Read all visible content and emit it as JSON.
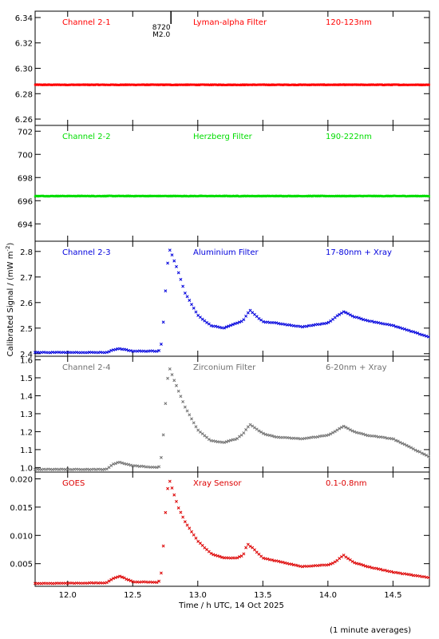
{
  "figure": {
    "ylabel": "Calibrated Signal  / (mW m",
    "ylabel_sup": "-2",
    "ylabel_end": ")",
    "xlabel": "Time / h UTC, 14 Oct 2025",
    "note": "(1 minute averages)",
    "flare_marker": {
      "x": 12.8,
      "label_top": "8720",
      "label_bottom": "M2.0"
    }
  },
  "chart_data": [
    {
      "type": "scatter",
      "channel": "Channel 2-1",
      "filter": "Lyman-alpha Filter",
      "band": "120-123nm",
      "color": "#ff0000",
      "xlim": [
        11.75,
        14.78
      ],
      "ylim": [
        6.255,
        6.345
      ],
      "yticks": [
        6.26,
        6.28,
        6.3,
        6.32,
        6.34
      ],
      "yticklabels": [
        "6.26",
        "6.28",
        "6.30",
        "6.32",
        "6.34"
      ],
      "x": [
        11.75,
        14.78
      ],
      "y": [
        6.287,
        6.287
      ]
    },
    {
      "type": "scatter",
      "channel": "Channel 2-2",
      "filter": "Herzberg Filter",
      "band": "190-222nm",
      "color": "#00dd00",
      "xlim": [
        11.75,
        14.78
      ],
      "ylim": [
        692.5,
        702.5
      ],
      "yticks": [
        694,
        696,
        698,
        700,
        702
      ],
      "yticklabels": [
        "694",
        "696",
        "698",
        "700",
        "702"
      ],
      "x": [
        11.75,
        14.78
      ],
      "y": [
        696.4,
        696.4
      ]
    },
    {
      "type": "scatter",
      "channel": "Channel 2-3",
      "filter": "Aluminium Filter",
      "band": "17-80nm + Xray",
      "color": "#0000dd",
      "xlim": [
        11.75,
        14.78
      ],
      "ylim": [
        2.39,
        2.84
      ],
      "yticks": [
        2.4,
        2.5,
        2.6,
        2.7,
        2.8
      ],
      "yticklabels": [
        "2.4",
        "2.5",
        "2.6",
        "2.7",
        "2.8"
      ],
      "x": [
        11.75,
        12.3,
        12.35,
        12.4,
        12.5,
        12.7,
        12.72,
        12.74,
        12.76,
        12.78,
        12.8,
        12.85,
        12.9,
        13.0,
        13.1,
        13.2,
        13.3,
        13.35,
        13.4,
        13.5,
        13.6,
        13.8,
        14.0,
        14.05,
        14.12,
        14.2,
        14.3,
        14.5,
        14.78
      ],
      "y": [
        2.405,
        2.405,
        2.415,
        2.42,
        2.41,
        2.41,
        2.44,
        2.55,
        2.71,
        2.81,
        2.79,
        2.72,
        2.64,
        2.55,
        2.51,
        2.5,
        2.52,
        2.53,
        2.57,
        2.525,
        2.52,
        2.505,
        2.52,
        2.54,
        2.565,
        2.545,
        2.53,
        2.51,
        2.465
      ]
    },
    {
      "type": "scatter",
      "channel": "Channel 2-4",
      "filter": "Zirconium Filter",
      "band": "6-20nm + Xray",
      "color": "#707070",
      "xlim": [
        11.75,
        14.78
      ],
      "ylim": [
        0.975,
        1.62
      ],
      "yticks": [
        1.0,
        1.1,
        1.2,
        1.3,
        1.4,
        1.5,
        1.6
      ],
      "yticklabels": [
        "1.0",
        "1.1",
        "1.2",
        "1.3",
        "1.4",
        "1.5",
        "1.6"
      ],
      "x": [
        11.75,
        12.3,
        12.35,
        12.4,
        12.5,
        12.7,
        12.72,
        12.74,
        12.76,
        12.78,
        12.8,
        12.85,
        12.9,
        13.0,
        13.1,
        13.2,
        13.3,
        13.35,
        13.4,
        13.5,
        13.6,
        13.8,
        14.0,
        14.05,
        14.12,
        14.2,
        14.3,
        14.5,
        14.78
      ],
      "y": [
        0.99,
        0.99,
        1.02,
        1.03,
        1.01,
        1.0,
        1.06,
        1.22,
        1.45,
        1.56,
        1.52,
        1.43,
        1.34,
        1.21,
        1.15,
        1.14,
        1.16,
        1.19,
        1.24,
        1.19,
        1.17,
        1.16,
        1.18,
        1.2,
        1.23,
        1.2,
        1.18,
        1.16,
        1.06
      ]
    },
    {
      "type": "scatter",
      "channel": "GOES",
      "filter": "Xray Sensor",
      "band": "0.1-0.8nm",
      "color": "#dd0000",
      "xlim": [
        11.75,
        14.78
      ],
      "ylim": [
        0.001,
        0.0212
      ],
      "yticks": [
        0.005,
        0.01,
        0.015,
        0.02
      ],
      "yticklabels": [
        "0.005",
        "0.010",
        "0.015",
        "0.020"
      ],
      "xticks": [
        12.0,
        12.5,
        13.0,
        13.5,
        14.0,
        14.5
      ],
      "xticklabels": [
        "12.0",
        "12.5",
        "13.0",
        "13.5",
        "14.0",
        "14.5"
      ],
      "x": [
        11.75,
        12.3,
        12.35,
        12.4,
        12.5,
        12.7,
        12.72,
        12.74,
        12.76,
        12.78,
        12.8,
        12.85,
        12.9,
        13.0,
        13.1,
        13.2,
        13.3,
        13.35,
        13.38,
        13.42,
        13.5,
        13.6,
        13.8,
        14.0,
        14.05,
        14.12,
        14.2,
        14.3,
        14.5,
        14.78
      ],
      "y": [
        0.0015,
        0.0016,
        0.0024,
        0.0028,
        0.0018,
        0.0017,
        0.0035,
        0.0095,
        0.017,
        0.02,
        0.0185,
        0.015,
        0.0125,
        0.009,
        0.0068,
        0.006,
        0.006,
        0.0065,
        0.0085,
        0.0078,
        0.006,
        0.0055,
        0.0045,
        0.0048,
        0.0052,
        0.0065,
        0.0052,
        0.0045,
        0.0035,
        0.0025
      ]
    }
  ]
}
